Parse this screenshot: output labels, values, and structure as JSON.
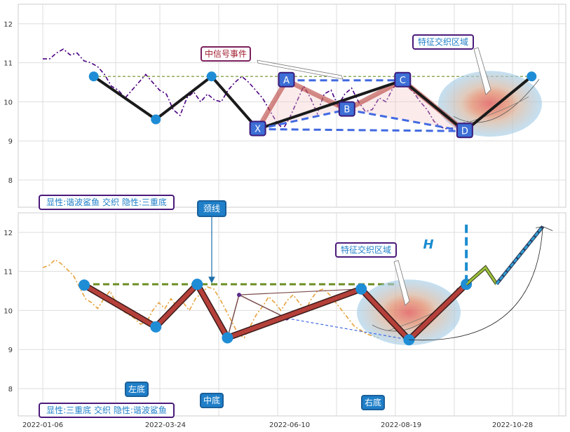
{
  "chart_data": [
    {
      "type": "line",
      "ylim": [
        7.3,
        12.5
      ],
      "yticks": [
        8,
        9,
        10,
        11,
        12
      ],
      "series": [
        {
          "values": [
            11.1,
            11.1,
            11.25,
            11.35,
            11.2,
            11.25,
            11.05,
            11.0,
            10.9,
            10.7,
            10.4,
            10.3,
            10.1,
            10.3,
            10.5,
            10.7,
            10.5,
            10.3,
            10.2,
            9.8,
            9.65,
            10.1,
            10.25,
            10.0,
            10.2,
            10.05,
            10.0,
            10.3,
            10.5,
            10.65,
            10.5,
            10.3,
            10.1,
            9.8,
            9.5,
            9.3,
            9.6,
            10.0,
            10.4,
            10.1,
            9.7,
            10.2,
            10.3,
            9.9,
            10.2,
            10.35,
            10.0,
            9.75,
            9.8,
            10.1,
            10.0,
            10.35,
            10.5,
            10.4,
            10.25,
            10.0,
            9.8,
            9.5,
            9.35,
            9.3,
            9.35,
            9.45,
            9.5
          ]
        }
      ],
      "pattern_points": [
        {
          "label": "X",
          "x": "2022-05-21",
          "y": 9.3
        },
        {
          "label": "A",
          "x": "2022-06-08",
          "y": 10.55
        },
        {
          "label": "B",
          "x": "2022-07-16",
          "y": 9.8
        },
        {
          "label": "C",
          "x": "2022-08-20",
          "y": 10.55
        },
        {
          "label": "D",
          "x": "2022-09-28",
          "y": 9.25
        }
      ],
      "triple_bottom_line": [
        {
          "x": "2022-02-07",
          "y": 10.65
        },
        {
          "x": "2022-03-18",
          "y": 9.55
        },
        {
          "x": "2022-04-22",
          "y": 10.65
        },
        {
          "x": "2022-05-21",
          "y": 9.3
        },
        {
          "x": "2022-08-20",
          "y": 10.55
        },
        {
          "x": "2022-09-28",
          "y": 9.25
        },
        {
          "x": "2022-11-09",
          "y": 10.65
        }
      ],
      "neckline_y": 10.65,
      "annotations": [
        "中信号事件",
        "特征交织区域"
      ],
      "footer_label": "显性:谐波鲨鱼 交织 隐性:三重底",
      "colors": {
        "price": "#4b0082",
        "neckline": "#6b8e23",
        "pattern": "#1a1a1a",
        "dashed": "#4169e1",
        "marker": "#1f8dd6"
      }
    },
    {
      "type": "line",
      "ylim": [
        7.3,
        12.5
      ],
      "yticks": [
        8,
        9,
        10,
        11,
        12
      ],
      "xticks": [
        "2022-01-06",
        "2022-03-24",
        "2022-06-10",
        "2022-08-19",
        "2022-10-28"
      ],
      "series": [
        {
          "values": [
            11.1,
            11.15,
            11.3,
            11.2,
            11.05,
            10.9,
            10.6,
            10.3,
            10.2,
            10.05,
            10.3,
            10.5,
            10.2,
            10.0,
            9.9,
            9.8,
            9.65,
            9.7,
            10.0,
            10.2,
            10.05,
            10.3,
            10.1,
            10.2,
            10.0,
            10.3,
            10.45,
            10.6,
            10.55,
            10.3,
            10.0,
            9.7,
            9.4,
            9.3,
            9.6,
            9.9,
            10.1,
            10.35,
            10.2,
            10.0,
            10.25,
            10.4,
            10.2,
            10.0,
            10.3,
            10.5,
            10.55,
            10.4,
            10.2,
            10.0,
            9.8,
            9.6,
            9.5,
            9.4,
            9.35,
            9.3
          ]
        }
      ],
      "triple_bottom_line": [
        {
          "x": "2022-02-01",
          "y": 10.65
        },
        {
          "x": "2022-03-18",
          "y": 9.58
        },
        {
          "x": "2022-04-13",
          "y": 10.67
        },
        {
          "x": "2022-05-02",
          "y": 9.3
        },
        {
          "x": "2022-07-25",
          "y": 10.55
        },
        {
          "x": "2022-08-24",
          "y": 9.25
        },
        {
          "x": "2022-09-29",
          "y": 10.67
        }
      ],
      "projection": [
        {
          "x": "2022-09-29",
          "y": 10.67
        },
        {
          "x": "2022-10-11",
          "y": 11.1
        },
        {
          "x": "2022-10-18",
          "y": 10.68
        },
        {
          "x": "2022-11-16",
          "y": 12.15
        }
      ],
      "neckline_y": 10.67,
      "h_marker": "H",
      "annotations": [
        "颈线",
        "特征交织区域"
      ],
      "bottom_labels": [
        "左底",
        "中底",
        "右底"
      ],
      "footer_label": "显性:三重底 交织 隐性:谐波鲨鱼",
      "colors": {
        "price": "#e6a23c",
        "neckline": "#6b8e23",
        "pattern": "#b5403a",
        "dashed": "#4169e1",
        "marker": "#1f8dd6"
      }
    }
  ]
}
